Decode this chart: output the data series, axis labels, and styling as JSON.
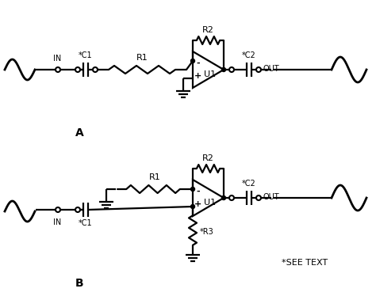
{
  "bg_color": "#ffffff",
  "line_color": "#000000",
  "lw": 1.6,
  "label_A": "A",
  "label_B": "B",
  "label_R1": "R1",
  "label_R2": "R2",
  "label_R1b": "R1",
  "label_R2b": "R2",
  "label_R3": "*R3",
  "label_C1": "*C1",
  "label_C2": "*C2",
  "label_C1b": "*C1",
  "label_C2b": "*C2",
  "label_IN": "IN",
  "label_OUT": "OUT",
  "label_INb": "IN",
  "label_OUTb": "OUT",
  "label_U1": "U1",
  "label_U1b": "U1",
  "label_see_text": "*SEE TEXT",
  "minus_sign": "-",
  "plus_sign": "+"
}
